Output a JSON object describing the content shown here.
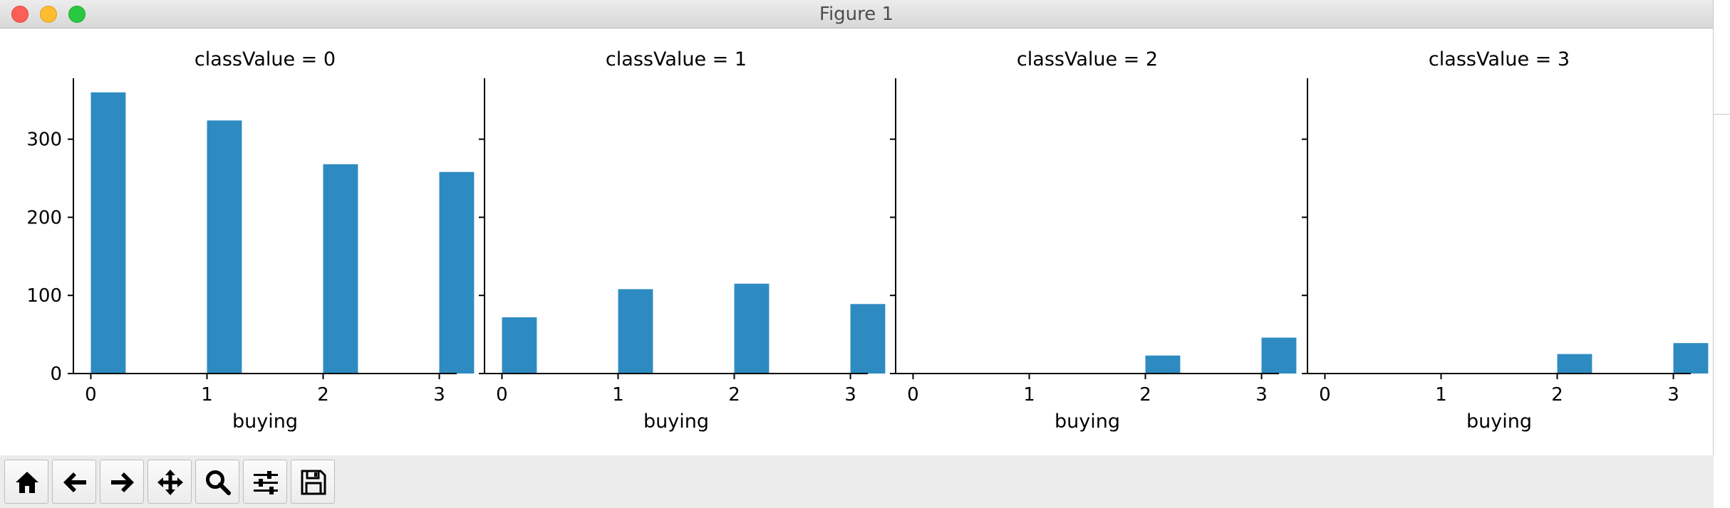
{
  "window": {
    "title": "Figure 1"
  },
  "toolbar": {
    "buttons": [
      {
        "id": "home",
        "icon": "home-icon"
      },
      {
        "id": "back",
        "icon": "arrow-left-icon"
      },
      {
        "id": "forward",
        "icon": "arrow-right-icon"
      },
      {
        "id": "pan",
        "icon": "move-icon"
      },
      {
        "id": "zoom",
        "icon": "magnifier-icon"
      },
      {
        "id": "configure",
        "icon": "sliders-icon"
      },
      {
        "id": "save",
        "icon": "floppy-disk-icon"
      }
    ]
  },
  "colors": {
    "bar": "#2d8bc1",
    "axis": "#000000"
  },
  "chart_data": [
    {
      "type": "bar",
      "title": "classValue = 0",
      "xlabel": "buying",
      "ylabel": "",
      "xlim": [
        -0.15,
        3.15
      ],
      "ylim": [
        0,
        378
      ],
      "xticks": [
        "0",
        "1",
        "2",
        "3"
      ],
      "yticks": [
        "0",
        "100",
        "200",
        "300"
      ],
      "x": [
        0,
        1,
        2,
        3
      ],
      "values": [
        360,
        324,
        268,
        258
      ],
      "grid": false
    },
    {
      "type": "bar",
      "title": "classValue = 1",
      "xlabel": "buying",
      "ylabel": "",
      "xlim": [
        -0.15,
        3.15
      ],
      "ylim": [
        0,
        378
      ],
      "xticks": [
        "0",
        "1",
        "2",
        "3"
      ],
      "yticks": [
        "0",
        "100",
        "200",
        "300"
      ],
      "x": [
        0,
        1,
        2,
        3
      ],
      "values": [
        72,
        108,
        115,
        89
      ],
      "grid": false
    },
    {
      "type": "bar",
      "title": "classValue = 2",
      "xlabel": "buying",
      "ylabel": "",
      "xlim": [
        -0.15,
        3.15
      ],
      "ylim": [
        0,
        378
      ],
      "xticks": [
        "0",
        "1",
        "2",
        "3"
      ],
      "yticks": [
        "0",
        "100",
        "200",
        "300"
      ],
      "x": [
        2,
        3
      ],
      "values": [
        23,
        46
      ],
      "grid": false
    },
    {
      "type": "bar",
      "title": "classValue = 3",
      "xlabel": "buying",
      "ylabel": "",
      "xlim": [
        -0.15,
        3.15
      ],
      "ylim": [
        0,
        378
      ],
      "xticks": [
        "0",
        "1",
        "2",
        "3"
      ],
      "yticks": [
        "0",
        "100",
        "200",
        "300"
      ],
      "x": [
        2,
        3
      ],
      "values": [
        25,
        39
      ],
      "grid": false
    }
  ]
}
